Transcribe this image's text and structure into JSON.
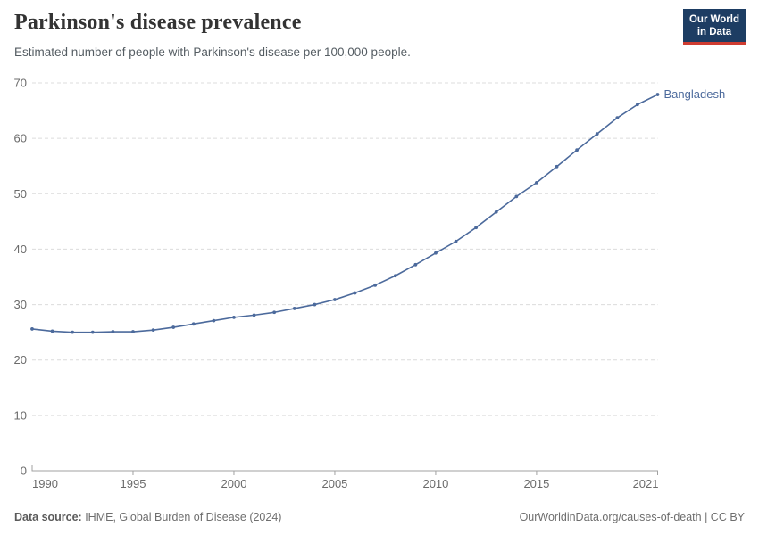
{
  "header": {
    "title": "Parkinson's disease prevalence",
    "subtitle": "Estimated number of people with Parkinson's disease per 100,000 people.",
    "logo": {
      "line1": "Our World",
      "line2": "in Data"
    }
  },
  "footer": {
    "source_label": "Data source:",
    "source_text": " IHME, Global Burden of Disease (2024)",
    "right_text": "OurWorldinData.org/causes-of-death | CC BY"
  },
  "colors": {
    "line": "#4C6A9C",
    "series_label": "#4C6A9C",
    "logo_background": "#1d3d63",
    "logo_accent_red": "#cf3c31"
  },
  "chart_data": {
    "type": "line",
    "title": "Parkinson's disease prevalence",
    "subtitle": "Estimated number of people with Parkinson's disease per 100,000 people.",
    "entity_label": "Bangladesh",
    "x": [
      1990,
      1991,
      1992,
      1993,
      1994,
      1995,
      1996,
      1997,
      1998,
      1999,
      2000,
      2001,
      2002,
      2003,
      2004,
      2005,
      2006,
      2007,
      2008,
      2009,
      2010,
      2011,
      2012,
      2013,
      2014,
      2015,
      2016,
      2017,
      2018,
      2019,
      2020,
      2021
    ],
    "series": [
      {
        "name": "Bangladesh",
        "values": [
          25.6,
          25.2,
          25.0,
          25.0,
          25.1,
          25.1,
          25.4,
          25.9,
          26.5,
          27.1,
          27.7,
          28.1,
          28.6,
          29.3,
          30.0,
          30.9,
          32.1,
          33.5,
          35.2,
          37.2,
          39.3,
          41.4,
          43.9,
          46.7,
          49.5,
          52.0,
          54.9,
          57.9,
          60.8,
          63.7,
          66.1,
          67.9
        ]
      }
    ],
    "xlabel": "",
    "ylabel": "",
    "ylim": [
      0,
      70
    ],
    "yticks": [
      0,
      10,
      20,
      30,
      40,
      50,
      60,
      70
    ],
    "xticks": [
      1990,
      1995,
      2000,
      2005,
      2010,
      2015,
      2021
    ],
    "grid": true,
    "legend_position": "line-end"
  }
}
